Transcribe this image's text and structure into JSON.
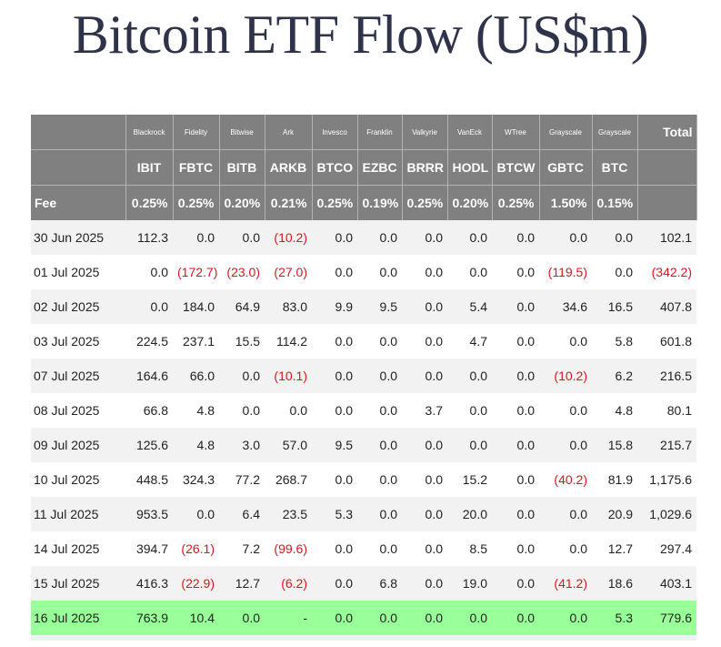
{
  "title": "Bitcoin ETF Flow (US$m)",
  "colors": {
    "header_bg": "#808080",
    "header_text": "#ffffff",
    "row_shade": "#f2f2f2",
    "highlight_row": "#99ff99",
    "negative": "#e0131a",
    "title": "#2f3349"
  },
  "columns": [
    {
      "issuer": "Blackrock",
      "ticker": "IBIT",
      "fee": "0.25%"
    },
    {
      "issuer": "Fidelity",
      "ticker": "FBTC",
      "fee": "0.25%"
    },
    {
      "issuer": "Bitwise",
      "ticker": "BITB",
      "fee": "0.20%"
    },
    {
      "issuer": "Ark",
      "ticker": "ARKB",
      "fee": "0.21%"
    },
    {
      "issuer": "Invesco",
      "ticker": "BTCO",
      "fee": "0.25%"
    },
    {
      "issuer": "Franklin",
      "ticker": "EZBC",
      "fee": "0.19%"
    },
    {
      "issuer": "Valkyrie",
      "ticker": "BRRR",
      "fee": "0.25%"
    },
    {
      "issuer": "VanEck",
      "ticker": "HODL",
      "fee": "0.20%"
    },
    {
      "issuer": "WTree",
      "ticker": "BTCW",
      "fee": "0.25%"
    },
    {
      "issuer": "Grayscale",
      "ticker": "GBTC",
      "fee": "1.50%"
    },
    {
      "issuer": "Grayscale",
      "ticker": "BTC",
      "fee": "0.15%"
    }
  ],
  "total_label": "Total",
  "fee_label": "Fee",
  "rows": [
    {
      "date": "30 Jun 2025",
      "values": [
        "112.3",
        "0.0",
        "0.0",
        "(10.2)",
        "0.0",
        "0.0",
        "0.0",
        "0.0",
        "0.0",
        "0.0",
        "0.0"
      ],
      "total": "102.1"
    },
    {
      "date": "01 Jul 2025",
      "values": [
        "0.0",
        "(172.7)",
        "(23.0)",
        "(27.0)",
        "0.0",
        "0.0",
        "0.0",
        "0.0",
        "0.0",
        "(119.5)",
        "0.0"
      ],
      "total": "(342.2)"
    },
    {
      "date": "02 Jul 2025",
      "values": [
        "0.0",
        "184.0",
        "64.9",
        "83.0",
        "9.9",
        "9.5",
        "0.0",
        "5.4",
        "0.0",
        "34.6",
        "16.5"
      ],
      "total": "407.8"
    },
    {
      "date": "03 Jul 2025",
      "values": [
        "224.5",
        "237.1",
        "15.5",
        "114.2",
        "0.0",
        "0.0",
        "0.0",
        "4.7",
        "0.0",
        "0.0",
        "5.8"
      ],
      "total": "601.8"
    },
    {
      "date": "07 Jul 2025",
      "values": [
        "164.6",
        "66.0",
        "0.0",
        "(10.1)",
        "0.0",
        "0.0",
        "0.0",
        "0.0",
        "0.0",
        "(10.2)",
        "6.2"
      ],
      "total": "216.5"
    },
    {
      "date": "08 Jul 2025",
      "values": [
        "66.8",
        "4.8",
        "0.0",
        "0.0",
        "0.0",
        "0.0",
        "3.7",
        "0.0",
        "0.0",
        "0.0",
        "4.8"
      ],
      "total": "80.1"
    },
    {
      "date": "09 Jul 2025",
      "values": [
        "125.6",
        "4.8",
        "3.0",
        "57.0",
        "9.5",
        "0.0",
        "0.0",
        "0.0",
        "0.0",
        "0.0",
        "15.8"
      ],
      "total": "215.7"
    },
    {
      "date": "10 Jul 2025",
      "values": [
        "448.5",
        "324.3",
        "77.2",
        "268.7",
        "0.0",
        "0.0",
        "0.0",
        "15.2",
        "0.0",
        "(40.2)",
        "81.9"
      ],
      "total": "1,175.6"
    },
    {
      "date": "11 Jul 2025",
      "values": [
        "953.5",
        "0.0",
        "6.4",
        "23.5",
        "5.3",
        "0.0",
        "0.0",
        "20.0",
        "0.0",
        "0.0",
        "20.9"
      ],
      "total": "1,029.6"
    },
    {
      "date": "14 Jul 2025",
      "values": [
        "394.7",
        "(26.1)",
        "7.2",
        "(99.6)",
        "0.0",
        "0.0",
        "0.0",
        "8.5",
        "0.0",
        "0.0",
        "12.7"
      ],
      "total": "297.4"
    },
    {
      "date": "15 Jul 2025",
      "values": [
        "416.3",
        "(22.9)",
        "12.7",
        "(6.2)",
        "0.0",
        "6.8",
        "0.0",
        "19.0",
        "0.0",
        "(41.2)",
        "18.6"
      ],
      "total": "403.1"
    },
    {
      "date": "16 Jul 2025",
      "values": [
        "763.9",
        "10.4",
        "0.0",
        "-",
        "0.0",
        "0.0",
        "0.0",
        "0.0",
        "0.0",
        "0.0",
        "5.3"
      ],
      "total": "779.6",
      "highlight": true
    }
  ]
}
